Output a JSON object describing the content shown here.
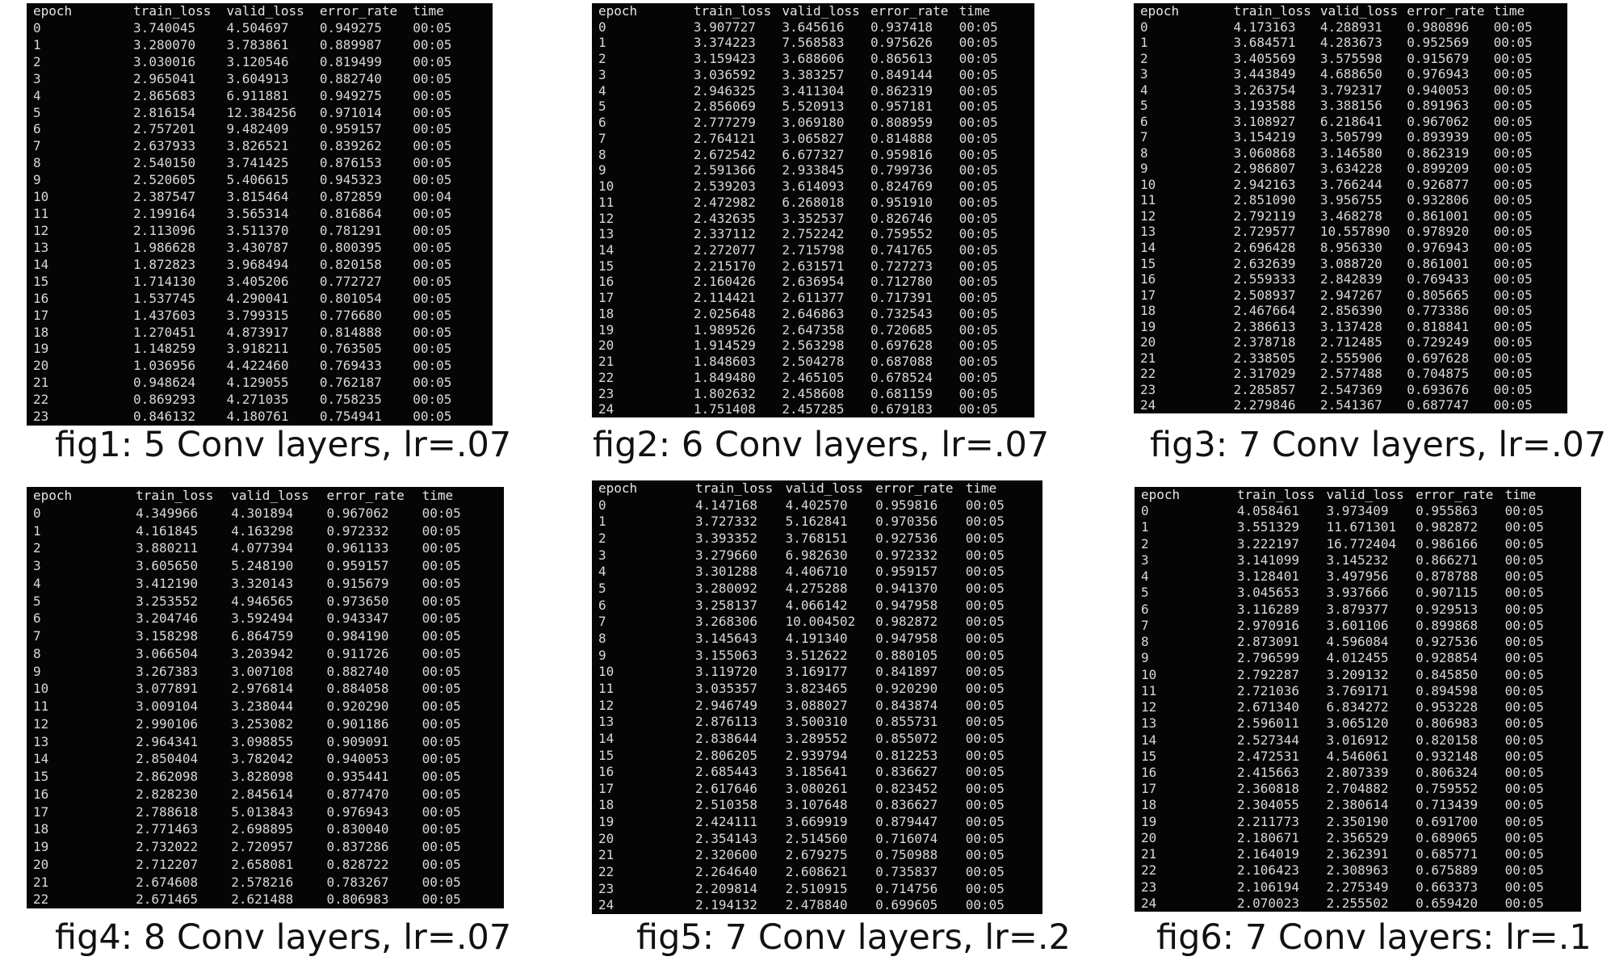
{
  "chart_data": [
    {
      "type": "table",
      "title": "fig1: 5 Conv layers, lr=.07",
      "columns": [
        "epoch",
        "train_loss",
        "valid_loss",
        "error_rate",
        "time"
      ],
      "rows": [
        [
          "0",
          "3.740045",
          "4.504697",
          "0.949275",
          "00:05"
        ],
        [
          "1",
          "3.280070",
          "3.783861",
          "0.889987",
          "00:05"
        ],
        [
          "2",
          "3.030016",
          "3.120546",
          "0.819499",
          "00:05"
        ],
        [
          "3",
          "2.965041",
          "3.604913",
          "0.882740",
          "00:05"
        ],
        [
          "4",
          "2.865683",
          "6.911881",
          "0.949275",
          "00:05"
        ],
        [
          "5",
          "2.816154",
          "12.384256",
          "0.971014",
          "00:05"
        ],
        [
          "6",
          "2.757201",
          "9.482409",
          "0.959157",
          "00:05"
        ],
        [
          "7",
          "2.637933",
          "3.826521",
          "0.839262",
          "00:05"
        ],
        [
          "8",
          "2.540150",
          "3.741425",
          "0.876153",
          "00:05"
        ],
        [
          "9",
          "2.520605",
          "5.406615",
          "0.945323",
          "00:05"
        ],
        [
          "10",
          "2.387547",
          "3.815464",
          "0.872859",
          "00:04"
        ],
        [
          "11",
          "2.199164",
          "3.565314",
          "0.816864",
          "00:05"
        ],
        [
          "12",
          "2.113096",
          "3.511370",
          "0.781291",
          "00:05"
        ],
        [
          "13",
          "1.986628",
          "3.430787",
          "0.800395",
          "00:05"
        ],
        [
          "14",
          "1.872823",
          "3.968494",
          "0.820158",
          "00:05"
        ],
        [
          "15",
          "1.714130",
          "3.405206",
          "0.772727",
          "00:05"
        ],
        [
          "16",
          "1.537745",
          "4.290041",
          "0.801054",
          "00:05"
        ],
        [
          "17",
          "1.437603",
          "3.799315",
          "0.776680",
          "00:05"
        ],
        [
          "18",
          "1.270451",
          "4.873917",
          "0.814888",
          "00:05"
        ],
        [
          "19",
          "1.148259",
          "3.918211",
          "0.763505",
          "00:05"
        ],
        [
          "20",
          "1.036956",
          "4.422460",
          "0.769433",
          "00:05"
        ],
        [
          "21",
          "0.948624",
          "4.129055",
          "0.762187",
          "00:05"
        ],
        [
          "22",
          "0.869293",
          "4.271035",
          "0.758235",
          "00:05"
        ],
        [
          "23",
          "0.846132",
          "4.180761",
          "0.754941",
          "00:05"
        ]
      ]
    },
    {
      "type": "table",
      "title": "fig2: 6 Conv layers, lr=.07",
      "columns": [
        "epoch",
        "train_loss",
        "valid_loss",
        "error_rate",
        "time"
      ],
      "rows": [
        [
          "0",
          "3.907727",
          "3.645616",
          "0.937418",
          "00:05"
        ],
        [
          "1",
          "3.374223",
          "7.568583",
          "0.975626",
          "00:05"
        ],
        [
          "2",
          "3.159423",
          "3.688606",
          "0.865613",
          "00:05"
        ],
        [
          "3",
          "3.036592",
          "3.383257",
          "0.849144",
          "00:05"
        ],
        [
          "4",
          "2.946325",
          "3.411304",
          "0.862319",
          "00:05"
        ],
        [
          "5",
          "2.856069",
          "5.520913",
          "0.957181",
          "00:05"
        ],
        [
          "6",
          "2.777279",
          "3.069180",
          "0.808959",
          "00:05"
        ],
        [
          "7",
          "2.764121",
          "3.065827",
          "0.814888",
          "00:05"
        ],
        [
          "8",
          "2.672542",
          "6.677327",
          "0.959816",
          "00:05"
        ],
        [
          "9",
          "2.591366",
          "2.933845",
          "0.799736",
          "00:05"
        ],
        [
          "10",
          "2.539203",
          "3.614093",
          "0.824769",
          "00:05"
        ],
        [
          "11",
          "2.472982",
          "6.268018",
          "0.951910",
          "00:05"
        ],
        [
          "12",
          "2.432635",
          "3.352537",
          "0.826746",
          "00:05"
        ],
        [
          "13",
          "2.337112",
          "2.752242",
          "0.759552",
          "00:05"
        ],
        [
          "14",
          "2.272077",
          "2.715798",
          "0.741765",
          "00:05"
        ],
        [
          "15",
          "2.215170",
          "2.631571",
          "0.727273",
          "00:05"
        ],
        [
          "16",
          "2.160426",
          "2.636954",
          "0.712780",
          "00:05"
        ],
        [
          "17",
          "2.114421",
          "2.611377",
          "0.717391",
          "00:05"
        ],
        [
          "18",
          "2.025648",
          "2.646863",
          "0.732543",
          "00:05"
        ],
        [
          "19",
          "1.989526",
          "2.647358",
          "0.720685",
          "00:05"
        ],
        [
          "20",
          "1.914529",
          "2.563298",
          "0.697628",
          "00:05"
        ],
        [
          "21",
          "1.848603",
          "2.504278",
          "0.687088",
          "00:05"
        ],
        [
          "22",
          "1.849480",
          "2.465105",
          "0.678524",
          "00:05"
        ],
        [
          "23",
          "1.802632",
          "2.458608",
          "0.681159",
          "00:05"
        ],
        [
          "24",
          "1.751408",
          "2.457285",
          "0.679183",
          "00:05"
        ]
      ]
    },
    {
      "type": "table",
      "title": "fig3: 7 Conv layers, lr=.07",
      "columns": [
        "epoch",
        "train_loss",
        "valid_loss",
        "error_rate",
        "time"
      ],
      "rows": [
        [
          "0",
          "4.173163",
          "4.288931",
          "0.980896",
          "00:05"
        ],
        [
          "1",
          "3.684571",
          "4.283673",
          "0.952569",
          "00:05"
        ],
        [
          "2",
          "3.405569",
          "3.575598",
          "0.915679",
          "00:05"
        ],
        [
          "3",
          "3.443849",
          "4.688650",
          "0.976943",
          "00:05"
        ],
        [
          "4",
          "3.263754",
          "3.792317",
          "0.940053",
          "00:05"
        ],
        [
          "5",
          "3.193588",
          "3.388156",
          "0.891963",
          "00:05"
        ],
        [
          "6",
          "3.108927",
          "6.218641",
          "0.967062",
          "00:05"
        ],
        [
          "7",
          "3.154219",
          "3.505799",
          "0.893939",
          "00:05"
        ],
        [
          "8",
          "3.060868",
          "3.146580",
          "0.862319",
          "00:05"
        ],
        [
          "9",
          "2.986807",
          "3.634228",
          "0.899209",
          "00:05"
        ],
        [
          "10",
          "2.942163",
          "3.766244",
          "0.926877",
          "00:05"
        ],
        [
          "11",
          "2.851090",
          "3.956755",
          "0.932806",
          "00:05"
        ],
        [
          "12",
          "2.792119",
          "3.468278",
          "0.861001",
          "00:05"
        ],
        [
          "13",
          "2.729577",
          "10.557890",
          "0.978920",
          "00:05"
        ],
        [
          "14",
          "2.696428",
          "8.956330",
          "0.976943",
          "00:05"
        ],
        [
          "15",
          "2.632639",
          "3.088720",
          "0.861001",
          "00:05"
        ],
        [
          "16",
          "2.559333",
          "2.842839",
          "0.769433",
          "00:05"
        ],
        [
          "17",
          "2.508937",
          "2.947267",
          "0.805665",
          "00:05"
        ],
        [
          "18",
          "2.467664",
          "2.856390",
          "0.773386",
          "00:05"
        ],
        [
          "19",
          "2.386613",
          "3.137428",
          "0.818841",
          "00:05"
        ],
        [
          "20",
          "2.378718",
          "2.712485",
          "0.729249",
          "00:05"
        ],
        [
          "21",
          "2.338505",
          "2.555906",
          "0.697628",
          "00:05"
        ],
        [
          "22",
          "2.317029",
          "2.577488",
          "0.704875",
          "00:05"
        ],
        [
          "23",
          "2.285857",
          "2.547369",
          "0.693676",
          "00:05"
        ],
        [
          "24",
          "2.279846",
          "2.541367",
          "0.687747",
          "00:05"
        ]
      ]
    },
    {
      "type": "table",
      "title": "fig4: 8 Conv layers, lr=.07",
      "columns": [
        "epoch",
        "train_loss",
        "valid_loss",
        "error_rate",
        "time"
      ],
      "rows": [
        [
          "0",
          "4.349966",
          "4.301894",
          "0.967062",
          "00:05"
        ],
        [
          "1",
          "4.161845",
          "4.163298",
          "0.972332",
          "00:05"
        ],
        [
          "2",
          "3.880211",
          "4.077394",
          "0.961133",
          "00:05"
        ],
        [
          "3",
          "3.605650",
          "5.248190",
          "0.959157",
          "00:05"
        ],
        [
          "4",
          "3.412190",
          "3.320143",
          "0.915679",
          "00:05"
        ],
        [
          "5",
          "3.253552",
          "4.946565",
          "0.973650",
          "00:05"
        ],
        [
          "6",
          "3.204746",
          "3.592494",
          "0.943347",
          "00:05"
        ],
        [
          "7",
          "3.158298",
          "6.864759",
          "0.984190",
          "00:05"
        ],
        [
          "8",
          "3.066504",
          "3.203942",
          "0.911726",
          "00:05"
        ],
        [
          "9",
          "3.267383",
          "3.007108",
          "0.882740",
          "00:05"
        ],
        [
          "10",
          "3.077891",
          "2.976814",
          "0.884058",
          "00:05"
        ],
        [
          "11",
          "3.009104",
          "3.238044",
          "0.920290",
          "00:05"
        ],
        [
          "12",
          "2.990106",
          "3.253082",
          "0.901186",
          "00:05"
        ],
        [
          "13",
          "2.964341",
          "3.098855",
          "0.909091",
          "00:05"
        ],
        [
          "14",
          "2.850404",
          "3.782042",
          "0.940053",
          "00:05"
        ],
        [
          "15",
          "2.862098",
          "3.828098",
          "0.935441",
          "00:05"
        ],
        [
          "16",
          "2.828230",
          "2.845614",
          "0.877470",
          "00:05"
        ],
        [
          "17",
          "2.788618",
          "5.013843",
          "0.976943",
          "00:05"
        ],
        [
          "18",
          "2.771463",
          "2.698895",
          "0.830040",
          "00:05"
        ],
        [
          "19",
          "2.732022",
          "2.720957",
          "0.837286",
          "00:05"
        ],
        [
          "20",
          "2.712207",
          "2.658081",
          "0.828722",
          "00:05"
        ],
        [
          "21",
          "2.674608",
          "2.578216",
          "0.783267",
          "00:05"
        ],
        [
          "22",
          "2.671465",
          "2.621488",
          "0.806983",
          "00:05"
        ]
      ]
    },
    {
      "type": "table",
      "title": "fig5: 7 Conv layers, lr=.2",
      "columns": [
        "epoch",
        "train_loss",
        "valid_loss",
        "error_rate",
        "time"
      ],
      "rows": [
        [
          "0",
          "4.147168",
          "4.402570",
          "0.959816",
          "00:05"
        ],
        [
          "1",
          "3.727332",
          "5.162841",
          "0.970356",
          "00:05"
        ],
        [
          "2",
          "3.393352",
          "3.768151",
          "0.927536",
          "00:05"
        ],
        [
          "3",
          "3.279660",
          "6.982630",
          "0.972332",
          "00:05"
        ],
        [
          "4",
          "3.301288",
          "4.406710",
          "0.959157",
          "00:05"
        ],
        [
          "5",
          "3.280092",
          "4.275288",
          "0.941370",
          "00:05"
        ],
        [
          "6",
          "3.258137",
          "4.066142",
          "0.947958",
          "00:05"
        ],
        [
          "7",
          "3.268306",
          "10.004502",
          "0.982872",
          "00:05"
        ],
        [
          "8",
          "3.145643",
          "4.191340",
          "0.947958",
          "00:05"
        ],
        [
          "9",
          "3.155063",
          "3.512622",
          "0.880105",
          "00:05"
        ],
        [
          "10",
          "3.119720",
          "3.169177",
          "0.841897",
          "00:05"
        ],
        [
          "11",
          "3.035357",
          "3.823465",
          "0.920290",
          "00:05"
        ],
        [
          "12",
          "2.946749",
          "3.088027",
          "0.843874",
          "00:05"
        ],
        [
          "13",
          "2.876113",
          "3.500310",
          "0.855731",
          "00:05"
        ],
        [
          "14",
          "2.838644",
          "3.289552",
          "0.855072",
          "00:05"
        ],
        [
          "15",
          "2.806205",
          "2.939794",
          "0.812253",
          "00:05"
        ],
        [
          "16",
          "2.685443",
          "3.185641",
          "0.836627",
          "00:05"
        ],
        [
          "17",
          "2.617646",
          "3.080261",
          "0.823452",
          "00:05"
        ],
        [
          "18",
          "2.510358",
          "3.107648",
          "0.836627",
          "00:05"
        ],
        [
          "19",
          "2.424111",
          "3.669919",
          "0.879447",
          "00:05"
        ],
        [
          "20",
          "2.354143",
          "2.514560",
          "0.716074",
          "00:05"
        ],
        [
          "21",
          "2.320600",
          "2.679275",
          "0.750988",
          "00:05"
        ],
        [
          "22",
          "2.264640",
          "2.608621",
          "0.735837",
          "00:05"
        ],
        [
          "23",
          "2.209814",
          "2.510915",
          "0.714756",
          "00:05"
        ],
        [
          "24",
          "2.194132",
          "2.478840",
          "0.699605",
          "00:05"
        ]
      ]
    },
    {
      "type": "table",
      "title": "fig6: 7 Conv layers: lr=.1",
      "columns": [
        "epoch",
        "train_loss",
        "valid_loss",
        "error_rate",
        "time"
      ],
      "rows": [
        [
          "0",
          "4.058461",
          "3.973409",
          "0.955863",
          "00:05"
        ],
        [
          "1",
          "3.551329",
          "11.671301",
          "0.982872",
          "00:05"
        ],
        [
          "2",
          "3.222197",
          "16.772404",
          "0.986166",
          "00:05"
        ],
        [
          "3",
          "3.141099",
          "3.145232",
          "0.866271",
          "00:05"
        ],
        [
          "4",
          "3.128401",
          "3.497956",
          "0.878788",
          "00:05"
        ],
        [
          "5",
          "3.045653",
          "3.937666",
          "0.907115",
          "00:05"
        ],
        [
          "6",
          "3.116289",
          "3.879377",
          "0.929513",
          "00:05"
        ],
        [
          "7",
          "2.970916",
          "3.601106",
          "0.899868",
          "00:05"
        ],
        [
          "8",
          "2.873091",
          "4.596084",
          "0.927536",
          "00:05"
        ],
        [
          "9",
          "2.796599",
          "4.012455",
          "0.928854",
          "00:05"
        ],
        [
          "10",
          "2.792287",
          "3.209132",
          "0.845850",
          "00:05"
        ],
        [
          "11",
          "2.721036",
          "3.769171",
          "0.894598",
          "00:05"
        ],
        [
          "12",
          "2.671340",
          "6.834272",
          "0.953228",
          "00:05"
        ],
        [
          "13",
          "2.596011",
          "3.065120",
          "0.806983",
          "00:05"
        ],
        [
          "14",
          "2.527344",
          "3.016912",
          "0.820158",
          "00:05"
        ],
        [
          "15",
          "2.472531",
          "4.546061",
          "0.932148",
          "00:05"
        ],
        [
          "16",
          "2.415663",
          "2.807339",
          "0.806324",
          "00:05"
        ],
        [
          "17",
          "2.360818",
          "2.704882",
          "0.759552",
          "00:05"
        ],
        [
          "18",
          "2.304055",
          "2.380614",
          "0.713439",
          "00:05"
        ],
        [
          "19",
          "2.211773",
          "2.350190",
          "0.691700",
          "00:05"
        ],
        [
          "20",
          "2.180671",
          "2.356529",
          "0.689065",
          "00:05"
        ],
        [
          "21",
          "2.164019",
          "2.362391",
          "0.685771",
          "00:05"
        ],
        [
          "22",
          "2.106423",
          "2.308963",
          "0.675889",
          "00:05"
        ],
        [
          "23",
          "2.106194",
          "2.275349",
          "0.663373",
          "00:05"
        ],
        [
          "24",
          "2.070023",
          "2.255502",
          "0.659420",
          "00:05"
        ]
      ]
    }
  ]
}
